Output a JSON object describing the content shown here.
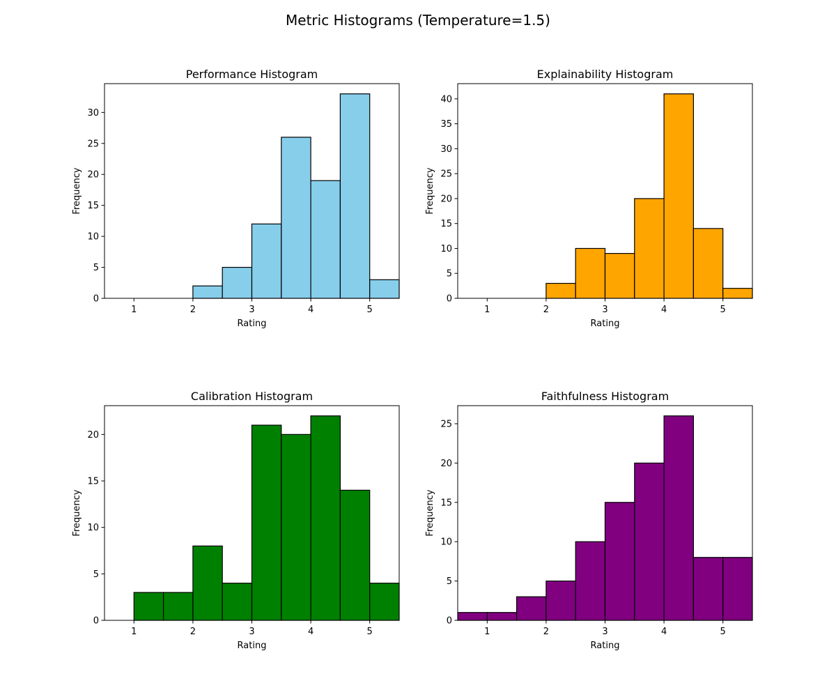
{
  "figure": {
    "suptitle": "Metric Histograms (Temperature=1.5)"
  },
  "chart_data": [
    {
      "type": "bar",
      "title": "Performance Histogram",
      "xlabel": "Rating",
      "ylabel": "Frequency",
      "color": "#87ceeb",
      "edgecolor": "#000000",
      "bin_edges": [
        0.5,
        1.0,
        1.5,
        2.0,
        2.5,
        3.0,
        3.5,
        4.0,
        4.5,
        5.0,
        5.5
      ],
      "values": [
        0,
        0,
        0,
        2,
        5,
        12,
        26,
        19,
        33,
        3
      ],
      "xlim": [
        0.5,
        5.5
      ],
      "ylim": [
        0,
        34.65
      ],
      "xticks": [
        1,
        2,
        3,
        4,
        5
      ],
      "yticks": [
        0,
        5,
        10,
        15,
        20,
        25,
        30
      ]
    },
    {
      "type": "bar",
      "title": "Explainability Histogram",
      "xlabel": "Rating",
      "ylabel": "Frequency",
      "color": "#ffa500",
      "edgecolor": "#000000",
      "bin_edges": [
        0.5,
        1.0,
        1.5,
        2.0,
        2.5,
        3.0,
        3.5,
        4.0,
        4.5,
        5.0,
        5.5
      ],
      "values": [
        0,
        0,
        0,
        3,
        10,
        9,
        20,
        41,
        14,
        2
      ],
      "xlim": [
        0.5,
        5.5
      ],
      "ylim": [
        0,
        43.05
      ],
      "xticks": [
        1,
        2,
        3,
        4,
        5
      ],
      "yticks": [
        0,
        5,
        10,
        15,
        20,
        25,
        30,
        35,
        40
      ]
    },
    {
      "type": "bar",
      "title": "Calibration Histogram",
      "xlabel": "Rating",
      "ylabel": "Frequency",
      "color": "#008000",
      "edgecolor": "#000000",
      "bin_edges": [
        0.5,
        1.0,
        1.5,
        2.0,
        2.5,
        3.0,
        3.5,
        4.0,
        4.5,
        5.0,
        5.5
      ],
      "values": [
        0,
        3,
        3,
        8,
        4,
        21,
        20,
        22,
        14,
        4
      ],
      "xlim": [
        0.5,
        5.5
      ],
      "ylim": [
        0,
        23.1
      ],
      "xticks": [
        1,
        2,
        3,
        4,
        5
      ],
      "yticks": [
        0,
        5,
        10,
        15,
        20
      ]
    },
    {
      "type": "bar",
      "title": "Faithfulness Histogram",
      "xlabel": "Rating",
      "ylabel": "Frequency",
      "color": "#800080",
      "edgecolor": "#000000",
      "bin_edges": [
        0.5,
        1.0,
        1.5,
        2.0,
        2.5,
        3.0,
        3.5,
        4.0,
        4.5,
        5.0,
        5.5
      ],
      "values": [
        1,
        1,
        3,
        5,
        10,
        15,
        20,
        26,
        8,
        8
      ],
      "xlim": [
        0.5,
        5.5
      ],
      "ylim": [
        0,
        27.3
      ],
      "xticks": [
        1,
        2,
        3,
        4,
        5
      ],
      "yticks": [
        0,
        5,
        10,
        15,
        20,
        25
      ]
    }
  ]
}
